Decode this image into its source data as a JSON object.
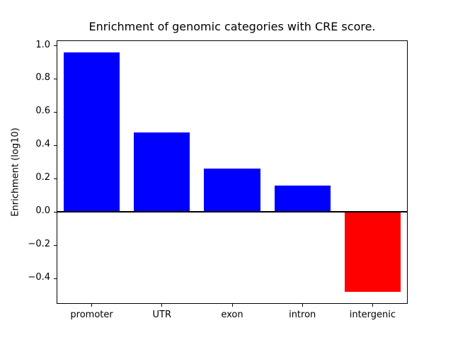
{
  "chart_data": {
    "type": "bar",
    "title": "Enrichment of genomic categories with CRE score.",
    "xlabel": "",
    "ylabel": "Enrichment (log10)",
    "categories": [
      "promoter",
      "UTR",
      "exon",
      "intron",
      "intergenic"
    ],
    "values": [
      0.96,
      0.48,
      0.26,
      0.16,
      -0.48
    ],
    "bar_colors": {
      "positive": "#0000ff",
      "negative": "#ff0000"
    },
    "ylim": [
      -0.552,
      1.032
    ],
    "yticks": [
      -0.4,
      -0.2,
      0.0,
      0.2,
      0.4,
      0.6,
      0.8,
      1.0
    ],
    "yticklabels": [
      "−0.4",
      "−0.2",
      "0.0",
      "0.2",
      "0.4",
      "0.6",
      "0.8",
      "1.0"
    ],
    "zero_line": true,
    "grid": false,
    "legend": null,
    "bar_width_fraction": 0.8
  }
}
